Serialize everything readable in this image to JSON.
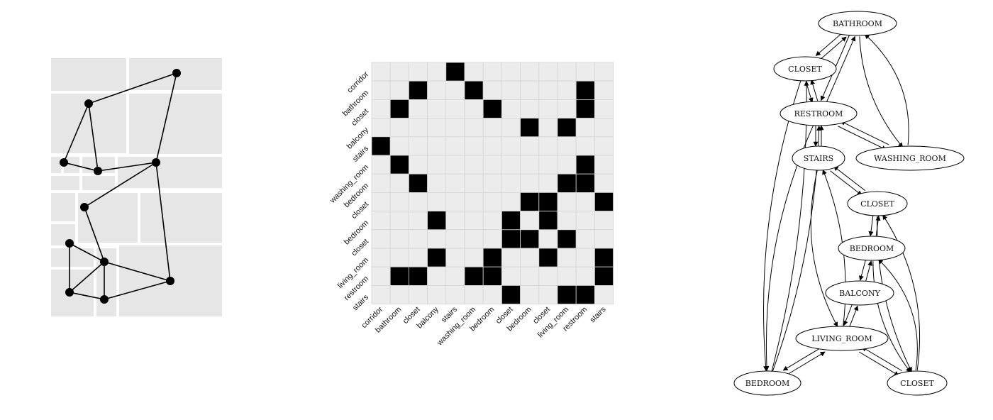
{
  "colors": {
    "room_fill": "#e6e6e6",
    "wall": "#ffffff",
    "graph_edge": "#000000",
    "cell_on": "#000000",
    "cell_off": "#ececec",
    "grid_line": "#d4d4d4"
  },
  "floorplan": {
    "nodes": [
      {
        "id": 0
      },
      {
        "id": 1
      },
      {
        "id": 2
      },
      {
        "id": 3
      },
      {
        "id": 4
      },
      {
        "id": 5
      },
      {
        "id": 6
      },
      {
        "id": 7
      },
      {
        "id": 8
      },
      {
        "id": 9
      },
      {
        "id": 10
      }
    ],
    "edges": [
      [
        0,
        1
      ],
      [
        0,
        4
      ],
      [
        1,
        2
      ],
      [
        1,
        3
      ],
      [
        2,
        3
      ],
      [
        3,
        4
      ],
      [
        4,
        5
      ],
      [
        4,
        10
      ],
      [
        5,
        7
      ],
      [
        6,
        7
      ],
      [
        6,
        8
      ],
      [
        7,
        8
      ],
      [
        7,
        9
      ],
      [
        7,
        10
      ],
      [
        8,
        9
      ],
      [
        9,
        10
      ]
    ]
  },
  "matrix": {
    "row_labels": [
      "corridor",
      "bathroom",
      "closet",
      "balcony",
      "stairs",
      "washing_room",
      "bedroom",
      "closet",
      "bedroom",
      "closet",
      "living_room",
      "restroom",
      "stairs"
    ],
    "col_labels": [
      "corridor",
      "bathroom",
      "closet",
      "balcony",
      "stairs",
      "washing_room",
      "bedroom",
      "closet",
      "bedroom",
      "closet",
      "living_room",
      "restroom",
      "stairs"
    ],
    "cells": [
      [
        0,
        0,
        0,
        0,
        1,
        0,
        0,
        0,
        0,
        0,
        0,
        0,
        0
      ],
      [
        0,
        0,
        1,
        0,
        0,
        1,
        0,
        0,
        0,
        0,
        0,
        1,
        0
      ],
      [
        0,
        1,
        0,
        0,
        0,
        0,
        1,
        0,
        0,
        0,
        0,
        1,
        0
      ],
      [
        0,
        0,
        0,
        0,
        0,
        0,
        0,
        0,
        1,
        0,
        1,
        0,
        0
      ],
      [
        1,
        0,
        0,
        0,
        0,
        0,
        0,
        0,
        0,
        0,
        0,
        0,
        0
      ],
      [
        0,
        1,
        0,
        0,
        0,
        0,
        0,
        0,
        0,
        0,
        0,
        1,
        0
      ],
      [
        0,
        0,
        1,
        0,
        0,
        0,
        0,
        0,
        0,
        0,
        1,
        1,
        0
      ],
      [
        0,
        0,
        0,
        0,
        0,
        0,
        0,
        0,
        1,
        1,
        0,
        0,
        1
      ],
      [
        0,
        0,
        0,
        1,
        0,
        0,
        0,
        1,
        0,
        1,
        0,
        0,
        0
      ],
      [
        0,
        0,
        0,
        0,
        0,
        0,
        0,
        1,
        1,
        0,
        1,
        0,
        0
      ],
      [
        0,
        0,
        0,
        1,
        0,
        0,
        1,
        0,
        0,
        1,
        0,
        0,
        1
      ],
      [
        0,
        1,
        1,
        0,
        0,
        1,
        1,
        0,
        0,
        0,
        0,
        0,
        1
      ],
      [
        0,
        0,
        0,
        0,
        0,
        0,
        0,
        1,
        0,
        0,
        1,
        1,
        0
      ]
    ]
  },
  "graph": {
    "nodes": [
      {
        "id": "bathroom",
        "label": "BATHROOM"
      },
      {
        "id": "closet1",
        "label": "CLOSET"
      },
      {
        "id": "restroom",
        "label": "RESTROOM"
      },
      {
        "id": "stairs",
        "label": "STAIRS"
      },
      {
        "id": "washing",
        "label": "WASHING_ROOM"
      },
      {
        "id": "closet2",
        "label": "CLOSET"
      },
      {
        "id": "bedroom1",
        "label": "BEDROOM"
      },
      {
        "id": "balcony",
        "label": "BALCONY"
      },
      {
        "id": "living",
        "label": "LIVING_ROOM"
      },
      {
        "id": "bedroom2",
        "label": "BEDROOM"
      },
      {
        "id": "closet3",
        "label": "CLOSET"
      }
    ],
    "edges": [
      [
        "closet1",
        "bathroom"
      ],
      [
        "bathroom",
        "closet1"
      ],
      [
        "closet1",
        "restroom"
      ],
      [
        "restroom",
        "closet1"
      ],
      [
        "restroom",
        "bathroom"
      ],
      [
        "bathroom",
        "restroom"
      ],
      [
        "washing",
        "bathroom"
      ],
      [
        "bathroom",
        "washing"
      ],
      [
        "restroom",
        "stairs"
      ],
      [
        "stairs",
        "restroom"
      ],
      [
        "restroom",
        "washing"
      ],
      [
        "washing",
        "restroom"
      ],
      [
        "stairs",
        "closet2"
      ],
      [
        "closet2",
        "stairs"
      ],
      [
        "closet2",
        "bedroom1"
      ],
      [
        "bedroom1",
        "closet2"
      ],
      [
        "bedroom1",
        "balcony"
      ],
      [
        "balcony",
        "bedroom1"
      ],
      [
        "balcony",
        "living"
      ],
      [
        "living",
        "balcony"
      ],
      [
        "living",
        "bedroom2"
      ],
      [
        "bedroom2",
        "living"
      ],
      [
        "living",
        "closet3"
      ],
      [
        "closet3",
        "living"
      ],
      [
        "stairs",
        "living"
      ],
      [
        "living",
        "stairs"
      ],
      [
        "restroom",
        "bedroom2"
      ],
      [
        "bedroom2",
        "restroom"
      ],
      [
        "closet1",
        "bedroom2"
      ],
      [
        "bedroom2",
        "closet1"
      ],
      [
        "closet2",
        "closet3"
      ],
      [
        "closet3",
        "closet2"
      ],
      [
        "bedroom1",
        "closet3"
      ],
      [
        "closet3",
        "bedroom1"
      ]
    ]
  }
}
